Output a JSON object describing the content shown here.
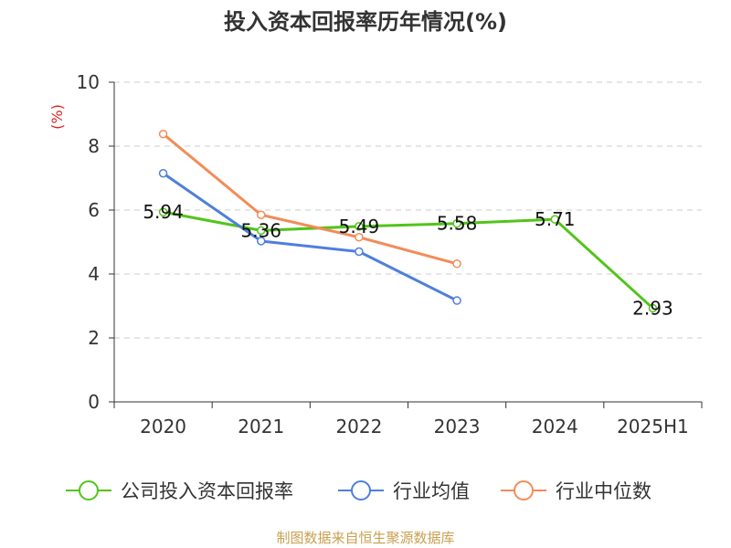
{
  "chart_data": {
    "type": "line",
    "title": "投入资本回报率历年情况(%)",
    "ylabel": "(%)",
    "categories": [
      "2020",
      "2021",
      "2022",
      "2023",
      "2024",
      "2025H1"
    ],
    "ylim": [
      0,
      10
    ],
    "yticks": [
      0,
      2,
      4,
      6,
      8,
      10
    ],
    "grid": "horizontal-dashed",
    "legend_position": "bottom",
    "series": [
      {
        "name": "公司投入资本回报率",
        "color": "#52c41a",
        "values": [
          5.94,
          5.36,
          5.49,
          5.58,
          5.71,
          2.93
        ],
        "labels": [
          "5.94",
          "5.36",
          "5.49",
          "5.58",
          "5.71",
          "2.93"
        ]
      },
      {
        "name": "行业均值",
        "color": "#4f7fdb",
        "values": [
          7.15,
          5.03,
          4.7,
          3.17,
          null,
          null
        ]
      },
      {
        "name": "行业中位数",
        "color": "#f28c5a",
        "values": [
          8.38,
          5.85,
          5.15,
          4.32,
          null,
          null
        ]
      }
    ]
  },
  "source": "制图数据来自恒生聚源数据库"
}
